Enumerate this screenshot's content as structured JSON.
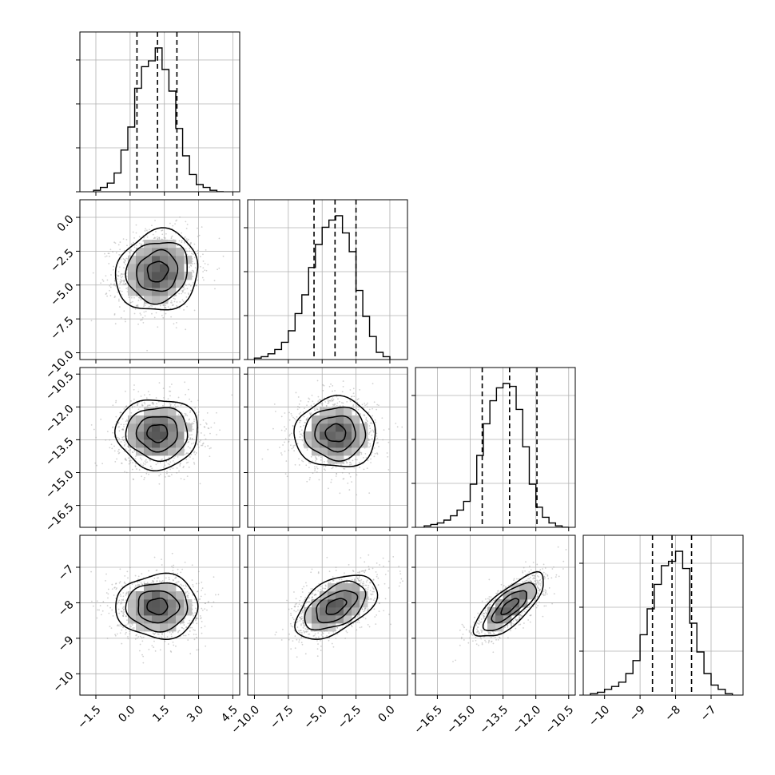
{
  "chart_data": {
    "type": "corner",
    "title": "",
    "grid": true,
    "variables": [
      {
        "index": 0,
        "range": [
          -2.2,
          4.8
        ],
        "ticks": [
          -1.5,
          0.0,
          1.5,
          3.0,
          4.5
        ],
        "tick_labels": [
          "−1.5",
          "0.0",
          "1.5",
          "3.0",
          "4.5"
        ],
        "quantiles": [
          0.3,
          1.2,
          2.05
        ],
        "hist_bins_left": [
          -1.6,
          -1.3,
          -1.0,
          -0.7,
          -0.4,
          -0.1,
          0.2,
          0.5,
          0.8,
          1.1,
          1.4,
          1.7,
          2.0,
          2.3,
          2.6,
          2.9,
          3.2,
          3.5,
          3.8
        ],
        "hist_bin_width": 0.3,
        "hist_counts": [
          0.01,
          0.03,
          0.06,
          0.13,
          0.29,
          0.45,
          0.72,
          0.87,
          0.91,
          1.0,
          0.85,
          0.7,
          0.44,
          0.25,
          0.12,
          0.05,
          0.03,
          0.01,
          0.0
        ]
      },
      {
        "index": 1,
        "range": [
          -10.5,
          1.3
        ],
        "ticks": [
          -10.0,
          -7.5,
          -5.0,
          -2.5,
          0.0
        ],
        "tick_labels": [
          "−10.0",
          "−7.5",
          "−5.0",
          "−2.5",
          "0.0"
        ],
        "quantiles": [
          -5.6,
          -4.05,
          -2.5
        ],
        "hist_bins_left": [
          -10.0,
          -9.5,
          -9.0,
          -8.5,
          -8.0,
          -7.5,
          -7.0,
          -6.5,
          -6.0,
          -5.5,
          -5.0,
          -4.5,
          -4.0,
          -3.5,
          -3.0,
          -2.5,
          -2.0,
          -1.5,
          -1.0,
          -0.5
        ],
        "hist_bin_width": 0.5,
        "hist_counts": [
          0.01,
          0.02,
          0.04,
          0.07,
          0.12,
          0.2,
          0.32,
          0.45,
          0.64,
          0.8,
          0.92,
          0.97,
          1.0,
          0.88,
          0.75,
          0.48,
          0.3,
          0.16,
          0.05,
          0.02
        ]
      },
      {
        "index": 2,
        "range": [
          -17.5,
          -10.2
        ],
        "ticks": [
          -16.5,
          -15.0,
          -13.5,
          -12.0,
          -10.5
        ],
        "tick_labels": [
          "−16.5",
          "−15.0",
          "−13.5",
          "−12.0",
          "−10.5"
        ],
        "quantiles": [
          -14.45,
          -13.2,
          -11.95
        ],
        "hist_bins_left": [
          -17.1,
          -16.8,
          -16.5,
          -16.2,
          -15.9,
          -15.6,
          -15.3,
          -15.0,
          -14.7,
          -14.4,
          -14.1,
          -13.8,
          -13.5,
          -13.2,
          -12.9,
          -12.6,
          -12.3,
          -12.0,
          -11.7,
          -11.4,
          -11.1,
          -10.8
        ],
        "hist_bin_width": 0.3,
        "hist_counts": [
          0.01,
          0.02,
          0.03,
          0.05,
          0.08,
          0.12,
          0.18,
          0.3,
          0.5,
          0.72,
          0.88,
          0.97,
          1.0,
          0.98,
          0.82,
          0.56,
          0.3,
          0.14,
          0.07,
          0.03,
          0.01,
          0.0
        ]
      },
      {
        "index": 3,
        "range": [
          -10.6,
          -6.1
        ],
        "ticks": [
          -10,
          -9,
          -8,
          -7
        ],
        "tick_labels": [
          "−10",
          "−9",
          "−8",
          "−7"
        ],
        "quantiles": [
          -8.65,
          -8.1,
          -7.55
        ],
        "hist_bins_left": [
          -10.4,
          -10.2,
          -10.0,
          -9.8,
          -9.6,
          -9.4,
          -9.2,
          -9.0,
          -8.8,
          -8.6,
          -8.4,
          -8.2,
          -8.0,
          -7.8,
          -7.6,
          -7.4,
          -7.2,
          -7.0,
          -6.8,
          -6.6
        ],
        "hist_bin_width": 0.2,
        "hist_counts": [
          0.01,
          0.02,
          0.04,
          0.06,
          0.09,
          0.15,
          0.24,
          0.42,
          0.6,
          0.77,
          0.9,
          0.93,
          1.0,
          0.88,
          0.5,
          0.3,
          0.15,
          0.07,
          0.04,
          0.01
        ]
      }
    ],
    "pairs": [
      {
        "row": 1,
        "col": 0,
        "center": [
          1.2,
          -4.0
        ],
        "sigma": [
          0.9,
          1.5
        ],
        "rho": 0.1
      },
      {
        "row": 2,
        "col": 0,
        "center": [
          1.2,
          -13.2
        ],
        "sigma": [
          0.9,
          0.8
        ],
        "rho": 0.0
      },
      {
        "row": 2,
        "col": 1,
        "center": [
          -4.0,
          -13.2
        ],
        "sigma": [
          1.5,
          0.8
        ],
        "rho": 0.0
      },
      {
        "row": 3,
        "col": 0,
        "center": [
          1.2,
          -8.1
        ],
        "sigma": [
          0.9,
          0.45
        ],
        "rho": 0.0
      },
      {
        "row": 3,
        "col": 1,
        "center": [
          -4.0,
          -8.1
        ],
        "sigma": [
          1.5,
          0.45
        ],
        "rho": 0.5
      },
      {
        "row": 3,
        "col": 2,
        "center": [
          -13.2,
          -8.1
        ],
        "sigma": [
          0.8,
          0.45
        ],
        "rho": 0.75
      }
    ],
    "contour_levels_sigma": [
      0.5,
      1.0,
      1.5,
      2.0
    ]
  }
}
